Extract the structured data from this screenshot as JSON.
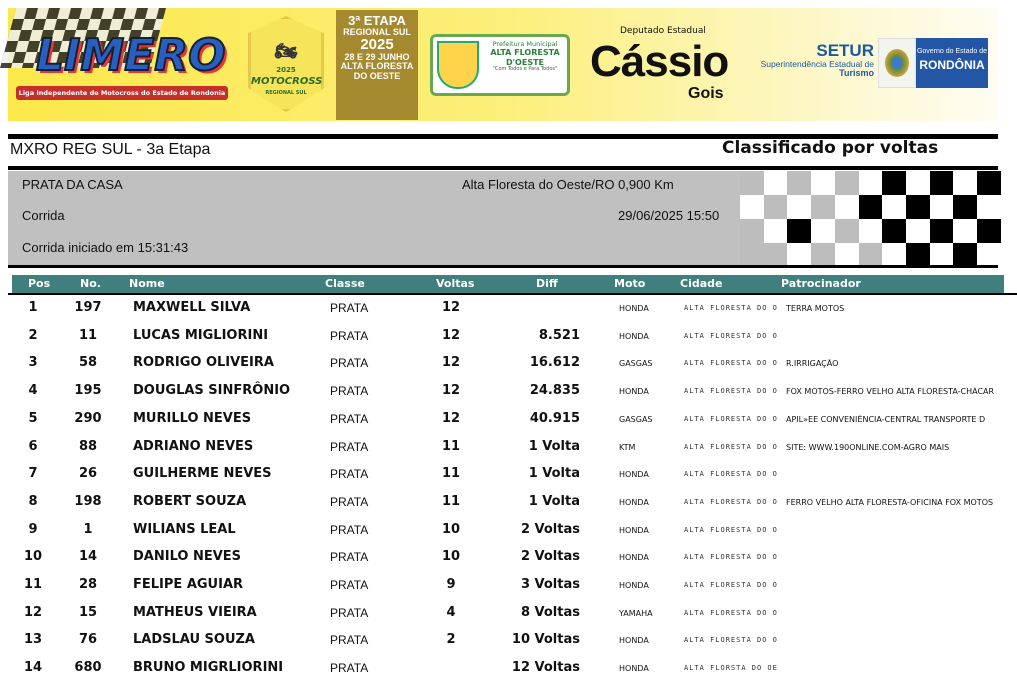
{
  "banner": {
    "limero_logo": "LIMERO",
    "limero_subtitle": "Liga Independente de Motocross do Estado de Rondonia",
    "motocross_badge": {
      "year": "2025",
      "title": "MOTOCROSS",
      "subtitle": "REGIONAL SUL"
    },
    "etapa": {
      "line1": "3ª ETAPA",
      "line2": "REGIONAL SUL",
      "line3": "2025",
      "line4": "28 E 29 JUNHO",
      "line5": "ALTA FLORESTA",
      "line6": "DO OESTE"
    },
    "prefeitura": {
      "line1": "Prefeitura Municipal",
      "line2": "ALTA FLORESTA",
      "line3": "D'OESTE",
      "line4": "\"Com Todos e Para Todos\""
    },
    "deputado": {
      "top": "Deputado Estadual",
      "name": "Cássio",
      "surname": "Gois"
    },
    "setur": {
      "title": "SETUR",
      "line1": "Superintendência Estadual de",
      "line2": "Turismo"
    },
    "governo": {
      "line1": "Governo do Estado de",
      "line2": "RONDÔNIA"
    }
  },
  "event": {
    "title": "MXRO REG SUL - 3a Etapa",
    "sort_label": "Classificado por voltas",
    "category": "PRATA DA CASA",
    "session": "Corrida",
    "started": "Corrida iniciado em 15:31:43",
    "location": "Alta Floresta do Oeste/RO 0,900 Km",
    "datetime": "29/06/2025 15:50"
  },
  "table": {
    "headers": {
      "pos": "Pos",
      "no": "No.",
      "nome": "Nome",
      "classe": "Classe",
      "voltas": "Voltas",
      "diff": "Diff",
      "moto": "Moto",
      "cidade": "Cidade",
      "patrocinador": "Patrocinador"
    },
    "header_color": "#3f7f7d",
    "rows": [
      {
        "pos": "1",
        "no": "197",
        "nome": "MAXWELL SILVA",
        "classe": "PRATA",
        "voltas": "12",
        "diff": "",
        "moto": "HONDA",
        "cidade": "ALTA FLORESTA DO O",
        "patrocinador": "TERRA MOTOS"
      },
      {
        "pos": "2",
        "no": "11",
        "nome": "LUCAS MIGLIORINI",
        "classe": "PRATA",
        "voltas": "12",
        "diff": "8.521",
        "moto": "HONDA",
        "cidade": "ALTA FLORESTA DO O",
        "patrocinador": ""
      },
      {
        "pos": "3",
        "no": "58",
        "nome": "RODRIGO OLIVEIRA",
        "classe": "PRATA",
        "voltas": "12",
        "diff": "16.612",
        "moto": "GASGAS",
        "cidade": "ALTA FLORESTA DO O",
        "patrocinador": "R.IRRIGAÇÃO"
      },
      {
        "pos": "4",
        "no": "195",
        "nome": "DOUGLAS SINFRÔNIO",
        "classe": "PRATA",
        "voltas": "12",
        "diff": "24.835",
        "moto": "HONDA",
        "cidade": "ALTA FLORESTA DO O",
        "patrocinador": "FOX MOTOS-FERRO VELHO ALTA FLORESTA-CHÁCAR"
      },
      {
        "pos": "5",
        "no": "290",
        "nome": "MURILLO NEVES",
        "classe": "PRATA",
        "voltas": "12",
        "diff": "40.915",
        "moto": "GASGAS",
        "cidade": "ALTA FLORESTA DO O",
        "patrocinador": "APIL»EE CONVENIÊNCIA-CENTRAL TRANSPORTE D"
      },
      {
        "pos": "6",
        "no": "88",
        "nome": "ADRIANO NEVES",
        "classe": "PRATA",
        "voltas": "11",
        "diff": "1 Volta",
        "moto": "KTM",
        "cidade": "ALTA FLORESTA DO O",
        "patrocinador": "SITE: WWW.190ONLINE.COM-AGRO MAIS"
      },
      {
        "pos": "7",
        "no": "26",
        "nome": "GUILHERME NEVES",
        "classe": "PRATA",
        "voltas": "11",
        "diff": "1 Volta",
        "moto": "HONDA",
        "cidade": "ALTA FLORESTA DO O",
        "patrocinador": ""
      },
      {
        "pos": "8",
        "no": "198",
        "nome": "ROBERT SOUZA",
        "classe": "PRATA",
        "voltas": "11",
        "diff": "1 Volta",
        "moto": "HONDA",
        "cidade": "ALTA FLORESTA DO O",
        "patrocinador": "FERRO VELHO ALTA FLORESTA-OFICINA FOX MOTOS"
      },
      {
        "pos": "9",
        "no": "1",
        "nome": "WILIANS LEAL",
        "classe": "PRATA",
        "voltas": "10",
        "diff": "2 Voltas",
        "moto": "HONDA",
        "cidade": "ALTA FLORESTA DO O",
        "patrocinador": ""
      },
      {
        "pos": "10",
        "no": "14",
        "nome": "DANILO NEVES",
        "classe": "PRATA",
        "voltas": "10",
        "diff": "2 Voltas",
        "moto": "HONDA",
        "cidade": "ALTA FLORESTA DO O",
        "patrocinador": ""
      },
      {
        "pos": "11",
        "no": "28",
        "nome": "FELIPE AGUIAR",
        "classe": "PRATA",
        "voltas": "9",
        "diff": "3 Voltas",
        "moto": "HONDA",
        "cidade": "ALTA FLORESTA DO O",
        "patrocinador": ""
      },
      {
        "pos": "12",
        "no": "15",
        "nome": "MATHEUS VIEIRA",
        "classe": "PRATA",
        "voltas": "4",
        "diff": "8 Voltas",
        "moto": "YAMAHA",
        "cidade": "ALTA FLORESTA DO O",
        "patrocinador": ""
      },
      {
        "pos": "13",
        "no": "76",
        "nome": "LADSLAU SOUZA",
        "classe": "PRATA",
        "voltas": "2",
        "diff": "10 Voltas",
        "moto": "HONDA",
        "cidade": "ALTA FLORESTA DO O",
        "patrocinador": ""
      },
      {
        "pos": "14",
        "no": "680",
        "nome": "BRUNO MIGRLIORINI",
        "classe": "PRATA",
        "voltas": "",
        "diff": "12 Voltas",
        "moto": "HONDA",
        "cidade": "ALTA FLORSTA DO OE",
        "patrocinador": ""
      }
    ]
  }
}
